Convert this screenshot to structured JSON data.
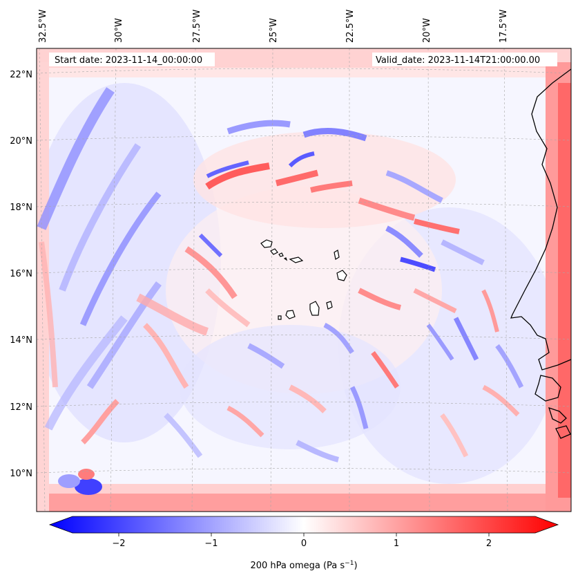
{
  "header": {
    "start_date": "Start date: 2023-11-14_00:00:00",
    "valid_date": "Valid_date: 2023-11-14T21:00:00.00"
  },
  "map": {
    "lon_labels": [
      "32.5°W",
      "30°W",
      "27.5°W",
      "25°W",
      "22.5°W",
      "20°W",
      "17.5°W"
    ],
    "lat_labels": [
      "22°N",
      "20°N",
      "18°N",
      "16°N",
      "14°N",
      "12°N",
      "10°N"
    ],
    "field": "omega",
    "cmap": [
      "#0000ff",
      "#ffffff",
      "#ff0000"
    ],
    "coastline_color": "#000000"
  },
  "colorbar": {
    "ticks": [
      "−2",
      "−1",
      "0",
      "1",
      "2"
    ],
    "tick_values": [
      -2,
      -1,
      0,
      1,
      2
    ],
    "range": [
      -2.5,
      2.5
    ],
    "label_main": "200 hPa omega (Pa s",
    "label_sup": "−1",
    "label_end": ")"
  }
}
